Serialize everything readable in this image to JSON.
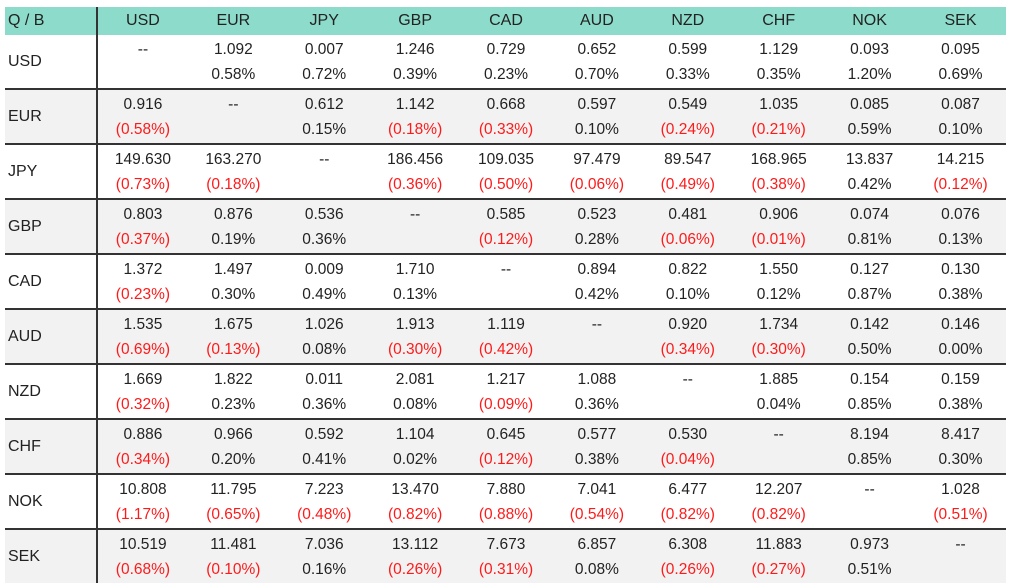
{
  "corner_label": "Q / B",
  "currencies": [
    "USD",
    "EUR",
    "JPY",
    "GBP",
    "CAD",
    "AUD",
    "NZD",
    "CHF",
    "NOK",
    "SEK"
  ],
  "colors": {
    "header_bg": "#8ddccb",
    "negative": "#ff1a1a",
    "alt_row": "#f2f2f2"
  },
  "rows": [
    {
      "label": "USD",
      "cells": [
        [
          "--",
          ""
        ],
        [
          "1.092",
          "0.58%"
        ],
        [
          "0.007",
          "0.72%"
        ],
        [
          "1.246",
          "0.39%"
        ],
        [
          "0.729",
          "0.23%"
        ],
        [
          "0.652",
          "0.70%"
        ],
        [
          "0.599",
          "0.33%"
        ],
        [
          "1.129",
          "0.35%"
        ],
        [
          "0.093",
          "1.20%"
        ],
        [
          "0.095",
          "0.69%"
        ]
      ]
    },
    {
      "label": "EUR",
      "cells": [
        [
          "0.916",
          "(0.58%)"
        ],
        [
          "--",
          ""
        ],
        [
          "0.612",
          "0.15%"
        ],
        [
          "1.142",
          "(0.18%)"
        ],
        [
          "0.668",
          "(0.33%)"
        ],
        [
          "0.597",
          "0.10%"
        ],
        [
          "0.549",
          "(0.24%)"
        ],
        [
          "1.035",
          "(0.21%)"
        ],
        [
          "0.085",
          "0.59%"
        ],
        [
          "0.087",
          "0.10%"
        ]
      ]
    },
    {
      "label": "JPY",
      "cells": [
        [
          "149.630",
          "(0.73%)"
        ],
        [
          "163.270",
          "(0.18%)"
        ],
        [
          "--",
          ""
        ],
        [
          "186.456",
          "(0.36%)"
        ],
        [
          "109.035",
          "(0.50%)"
        ],
        [
          "97.479",
          "(0.06%)"
        ],
        [
          "89.547",
          "(0.49%)"
        ],
        [
          "168.965",
          "(0.38%)"
        ],
        [
          "13.837",
          "0.42%"
        ],
        [
          "14.215",
          "(0.12%)"
        ]
      ]
    },
    {
      "label": "GBP",
      "cells": [
        [
          "0.803",
          "(0.37%)"
        ],
        [
          "0.876",
          "0.19%"
        ],
        [
          "0.536",
          "0.36%"
        ],
        [
          "--",
          ""
        ],
        [
          "0.585",
          "(0.12%)"
        ],
        [
          "0.523",
          "0.28%"
        ],
        [
          "0.481",
          "(0.06%)"
        ],
        [
          "0.906",
          "(0.01%)"
        ],
        [
          "0.074",
          "0.81%"
        ],
        [
          "0.076",
          "0.13%"
        ]
      ]
    },
    {
      "label": "CAD",
      "cells": [
        [
          "1.372",
          "(0.23%)"
        ],
        [
          "1.497",
          "0.30%"
        ],
        [
          "0.009",
          "0.49%"
        ],
        [
          "1.710",
          "0.13%"
        ],
        [
          "--",
          ""
        ],
        [
          "0.894",
          "0.42%"
        ],
        [
          "0.822",
          "0.10%"
        ],
        [
          "1.550",
          "0.12%"
        ],
        [
          "0.127",
          "0.87%"
        ],
        [
          "0.130",
          "0.38%"
        ]
      ]
    },
    {
      "label": "AUD",
      "cells": [
        [
          "1.535",
          "(0.69%)"
        ],
        [
          "1.675",
          "(0.13%)"
        ],
        [
          "1.026",
          "0.08%"
        ],
        [
          "1.913",
          "(0.30%)"
        ],
        [
          "1.119",
          "(0.42%)"
        ],
        [
          "--",
          ""
        ],
        [
          "0.920",
          "(0.34%)"
        ],
        [
          "1.734",
          "(0.30%)"
        ],
        [
          "0.142",
          "0.50%"
        ],
        [
          "0.146",
          "0.00%"
        ]
      ]
    },
    {
      "label": "NZD",
      "cells": [
        [
          "1.669",
          "(0.32%)"
        ],
        [
          "1.822",
          "0.23%"
        ],
        [
          "0.011",
          "0.36%"
        ],
        [
          "2.081",
          "0.08%"
        ],
        [
          "1.217",
          "(0.09%)"
        ],
        [
          "1.088",
          "0.36%"
        ],
        [
          "--",
          ""
        ],
        [
          "1.885",
          "0.04%"
        ],
        [
          "0.154",
          "0.85%"
        ],
        [
          "0.159",
          "0.38%"
        ]
      ]
    },
    {
      "label": "CHF",
      "cells": [
        [
          "0.886",
          "(0.34%)"
        ],
        [
          "0.966",
          "0.20%"
        ],
        [
          "0.592",
          "0.41%"
        ],
        [
          "1.104",
          "0.02%"
        ],
        [
          "0.645",
          "(0.12%)"
        ],
        [
          "0.577",
          "0.38%"
        ],
        [
          "0.530",
          "(0.04%)"
        ],
        [
          "--",
          ""
        ],
        [
          "8.194",
          "0.85%"
        ],
        [
          "8.417",
          "0.30%"
        ]
      ]
    },
    {
      "label": "NOK",
      "cells": [
        [
          "10.808",
          "(1.17%)"
        ],
        [
          "11.795",
          "(0.65%)"
        ],
        [
          "7.223",
          "(0.48%)"
        ],
        [
          "13.470",
          "(0.82%)"
        ],
        [
          "7.880",
          "(0.88%)"
        ],
        [
          "7.041",
          "(0.54%)"
        ],
        [
          "6.477",
          "(0.82%)"
        ],
        [
          "12.207",
          "(0.82%)"
        ],
        [
          "--",
          ""
        ],
        [
          "1.028",
          "(0.51%)"
        ]
      ]
    },
    {
      "label": "SEK",
      "cells": [
        [
          "10.519",
          "(0.68%)"
        ],
        [
          "11.481",
          "(0.10%)"
        ],
        [
          "7.036",
          "0.16%"
        ],
        [
          "13.112",
          "(0.26%)"
        ],
        [
          "7.673",
          "(0.31%)"
        ],
        [
          "6.857",
          "0.08%"
        ],
        [
          "6.308",
          "(0.26%)"
        ],
        [
          "11.883",
          "(0.27%)"
        ],
        [
          "0.973",
          "0.51%"
        ],
        [
          "--",
          ""
        ]
      ]
    }
  ]
}
